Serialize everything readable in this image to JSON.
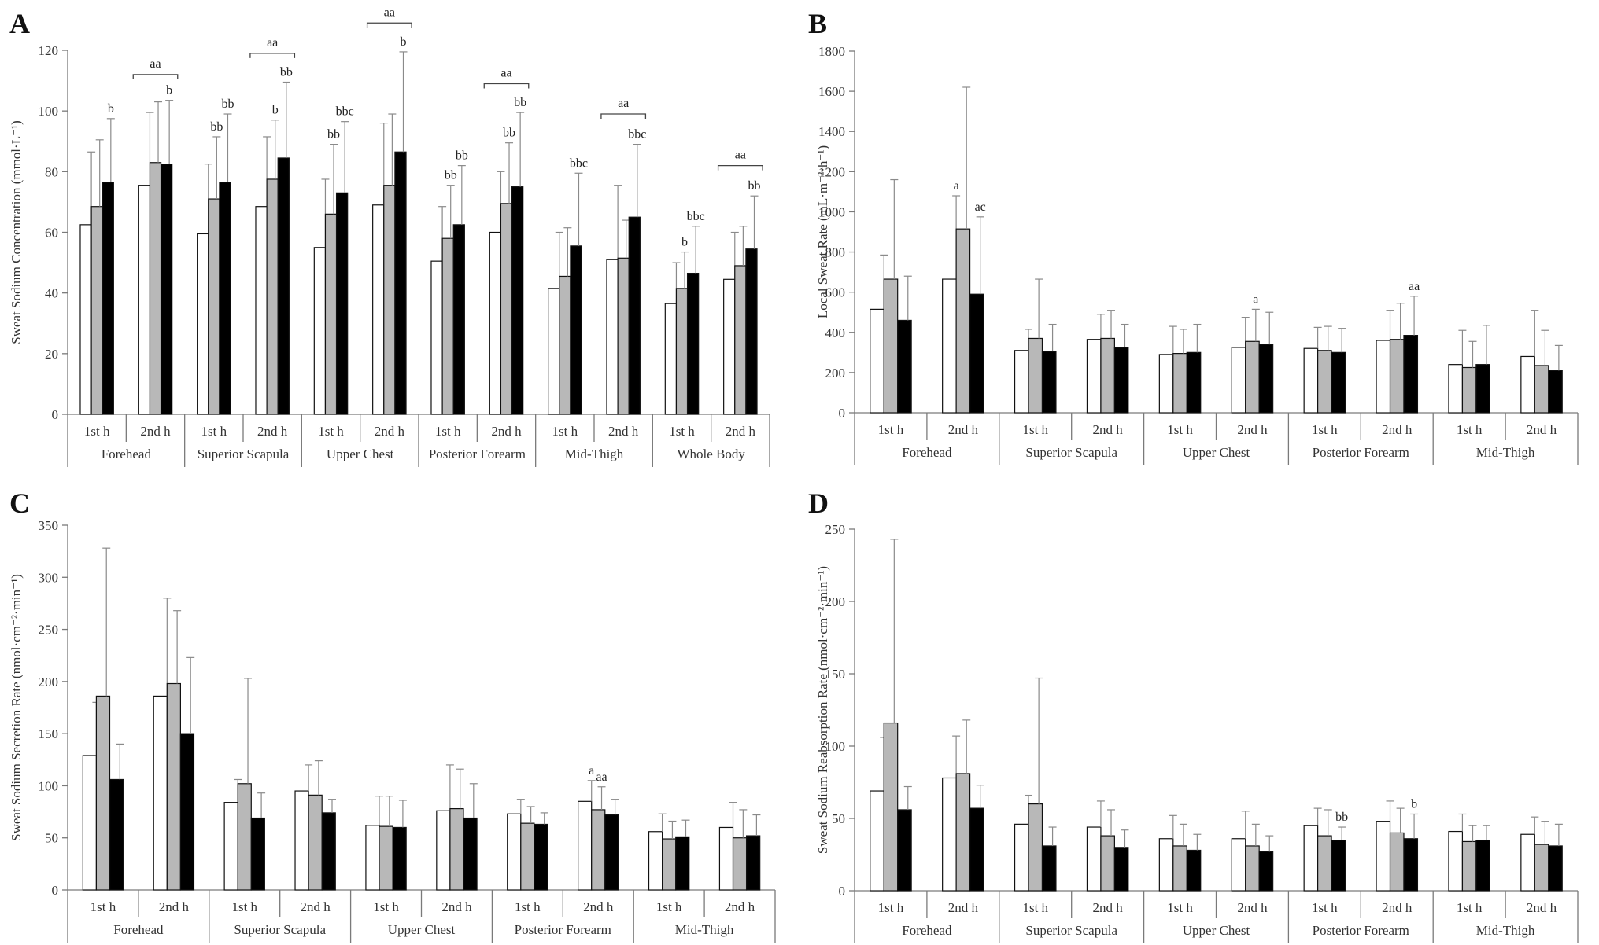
{
  "figure": {
    "colors": {
      "series1": "#ffffff",
      "series2": "#b8b8b8",
      "series3": "#000000",
      "edge": "#111111"
    }
  },
  "chart_data": [
    {
      "panel": "A",
      "type": "bar",
      "ylabel": "Sweat Sodium Concentration (mmol·L⁻¹)",
      "ylim": [
        0,
        120
      ],
      "yticks": [
        0,
        20,
        40,
        60,
        80,
        100,
        120
      ],
      "sites": [
        "Forehead",
        "Superior Scapula",
        "Upper Chest",
        "Posterior Forearm",
        "Mid-Thigh",
        "Whole Body"
      ],
      "hours": [
        "1st h",
        "2nd h"
      ],
      "groups": [
        {
          "site": "Forehead",
          "hour": "1st h",
          "values": [
            62.5,
            68.5,
            76.5
          ],
          "errors": [
            86.5,
            90.5,
            97.5
          ],
          "labels": [
            "",
            "",
            "b"
          ]
        },
        {
          "site": "Forehead",
          "hour": "2nd h",
          "values": [
            75.5,
            83,
            82.5
          ],
          "errors": [
            99.5,
            103,
            103.5
          ],
          "labels": [
            "",
            "",
            "b"
          ]
        },
        {
          "site": "Superior Scapula",
          "hour": "1st h",
          "values": [
            59.5,
            71,
            76.5
          ],
          "errors": [
            82.5,
            91.5,
            99
          ],
          "labels": [
            "",
            "bb",
            "bb"
          ]
        },
        {
          "site": "Superior Scapula",
          "hour": "2nd h",
          "values": [
            68.5,
            77.5,
            84.5
          ],
          "errors": [
            91.5,
            97,
            109.5
          ],
          "labels": [
            "",
            "b",
            "bb"
          ]
        },
        {
          "site": "Upper Chest",
          "hour": "1st h",
          "values": [
            55,
            66,
            73
          ],
          "errors": [
            77.5,
            89,
            96.5
          ],
          "labels": [
            "",
            "bb",
            "bbc"
          ]
        },
        {
          "site": "Upper Chest",
          "hour": "2nd h",
          "values": [
            69,
            75.5,
            86.5
          ],
          "errors": [
            96,
            99,
            119.5
          ],
          "labels": [
            "",
            "",
            "b"
          ]
        },
        {
          "site": "Posterior Forearm",
          "hour": "1st h",
          "values": [
            50.5,
            58,
            62.5
          ],
          "errors": [
            68.5,
            75.5,
            82
          ],
          "labels": [
            "",
            "bb",
            "bb"
          ]
        },
        {
          "site": "Posterior Forearm",
          "hour": "2nd h",
          "values": [
            60,
            69.5,
            75
          ],
          "errors": [
            80,
            89.5,
            99.5
          ],
          "labels": [
            "",
            "bb",
            "bb"
          ]
        },
        {
          "site": "Mid-Thigh",
          "hour": "1st h",
          "values": [
            41.5,
            45.5,
            55.5
          ],
          "errors": [
            60,
            61.5,
            79.5
          ],
          "labels": [
            "",
            "",
            "bbc"
          ]
        },
        {
          "site": "Mid-Thigh",
          "hour": "2nd h",
          "values": [
            51,
            51.5,
            65
          ],
          "errors": [
            75.5,
            64,
            89
          ],
          "labels": [
            "",
            "",
            "bbc"
          ]
        },
        {
          "site": "Whole Body",
          "hour": "1st h",
          "values": [
            36.5,
            41.5,
            46.5
          ],
          "errors": [
            50,
            53.5,
            62
          ],
          "labels": [
            "",
            "b",
            "bbc"
          ]
        },
        {
          "site": "Whole Body",
          "hour": "2nd h",
          "values": [
            44.5,
            49,
            54.5
          ],
          "errors": [
            60,
            62,
            72
          ],
          "labels": [
            "",
            "",
            "bb"
          ]
        }
      ],
      "brackets": [
        {
          "group": 1,
          "label": "aa",
          "level": 112
        },
        {
          "group": 3,
          "label": "aa",
          "level": 119
        },
        {
          "group": 5,
          "label": "aa",
          "level": 129
        },
        {
          "group": 7,
          "label": "aa",
          "level": 109
        },
        {
          "group": 9,
          "label": "aa",
          "level": 99
        },
        {
          "group": 11,
          "label": "aa",
          "level": 82
        }
      ]
    },
    {
      "panel": "B",
      "type": "bar",
      "ylabel": "Local Sweat Rate (mL·m⁻²·h⁻¹)",
      "ylim": [
        0,
        1800
      ],
      "yticks": [
        0,
        200,
        400,
        600,
        800,
        1000,
        1200,
        1400,
        1600,
        1800
      ],
      "sites": [
        "Forehead",
        "Superior Scapula",
        "Upper Chest",
        "Posterior Forearm",
        "Mid-Thigh"
      ],
      "hours": [
        "1st h",
        "2nd h"
      ],
      "groups": [
        {
          "site": "Forehead",
          "hour": "1st h",
          "values": [
            515,
            665,
            460
          ],
          "errors": [
            785,
            1160,
            680
          ],
          "labels": [
            "",
            "",
            ""
          ]
        },
        {
          "site": "Forehead",
          "hour": "2nd h",
          "values": [
            665,
            915,
            590
          ],
          "errors": [
            1080,
            1620,
            975
          ],
          "labels": [
            "a",
            "",
            "ac"
          ]
        },
        {
          "site": "Superior Scapula",
          "hour": "1st h",
          "values": [
            310,
            370,
            305
          ],
          "errors": [
            415,
            665,
            440
          ],
          "labels": [
            "",
            "",
            ""
          ]
        },
        {
          "site": "Superior Scapula",
          "hour": "2nd h",
          "values": [
            365,
            370,
            325
          ],
          "errors": [
            490,
            510,
            440
          ],
          "labels": [
            "",
            "",
            ""
          ]
        },
        {
          "site": "Upper Chest",
          "hour": "1st h",
          "values": [
            290,
            295,
            300
          ],
          "errors": [
            430,
            415,
            440
          ],
          "labels": [
            "",
            "",
            ""
          ]
        },
        {
          "site": "Upper Chest",
          "hour": "2nd h",
          "values": [
            325,
            355,
            340
          ],
          "errors": [
            475,
            515,
            500
          ],
          "labels": [
            "",
            "a",
            ""
          ]
        },
        {
          "site": "Posterior Forearm",
          "hour": "1st h",
          "values": [
            320,
            310,
            300
          ],
          "errors": [
            425,
            430,
            420
          ],
          "labels": [
            "",
            "",
            ""
          ]
        },
        {
          "site": "Posterior Forearm",
          "hour": "2nd h",
          "values": [
            360,
            365,
            385
          ],
          "errors": [
            510,
            545,
            580
          ],
          "labels": [
            "",
            "",
            "aa"
          ]
        },
        {
          "site": "Mid-Thigh",
          "hour": "1st h",
          "values": [
            240,
            225,
            240
          ],
          "errors": [
            410,
            355,
            435
          ],
          "labels": [
            "",
            "",
            ""
          ]
        },
        {
          "site": "Mid-Thigh",
          "hour": "2nd h",
          "values": [
            280,
            235,
            210
          ],
          "errors": [
            510,
            410,
            335
          ],
          "labels": [
            "",
            "",
            ""
          ]
        }
      ],
      "brackets": []
    },
    {
      "panel": "C",
      "type": "bar",
      "ylabel": "Sweat Sodium Secretion  Rate (nmol·cm⁻²·min⁻¹)",
      "ylim": [
        0,
        350
      ],
      "yticks": [
        0,
        50,
        100,
        150,
        200,
        250,
        300,
        350
      ],
      "sites": [
        "Forehead",
        "Superior Scapula",
        "Upper Chest",
        "Posterior Forearm",
        "Mid-Thigh"
      ],
      "hours": [
        "1st h",
        "2nd h"
      ],
      "groups": [
        {
          "site": "Forehead",
          "hour": "1st h",
          "values": [
            129,
            186,
            106
          ],
          "errors": [
            180,
            328,
            140
          ],
          "labels": [
            "",
            "",
            ""
          ]
        },
        {
          "site": "Forehead",
          "hour": "2nd h",
          "values": [
            186,
            198,
            150
          ],
          "errors": [
            280,
            268,
            223
          ],
          "labels": [
            "",
            "",
            ""
          ]
        },
        {
          "site": "Superior Scapula",
          "hour": "1st h",
          "values": [
            84,
            102,
            69
          ],
          "errors": [
            106,
            203,
            93
          ],
          "labels": [
            "",
            "",
            ""
          ]
        },
        {
          "site": "Superior Scapula",
          "hour": "2nd h",
          "values": [
            95,
            91,
            74
          ],
          "errors": [
            120,
            124,
            87
          ],
          "labels": [
            "",
            "",
            ""
          ]
        },
        {
          "site": "Upper Chest",
          "hour": "1st h",
          "values": [
            62,
            61,
            60
          ],
          "errors": [
            90,
            90,
            86
          ],
          "labels": [
            "",
            "",
            ""
          ]
        },
        {
          "site": "Upper Chest",
          "hour": "2nd h",
          "values": [
            76,
            78,
            69
          ],
          "errors": [
            120,
            116,
            102
          ],
          "labels": [
            "",
            "",
            ""
          ]
        },
        {
          "site": "Posterior Forearm",
          "hour": "1st h",
          "values": [
            73,
            64,
            63
          ],
          "errors": [
            87,
            80,
            74
          ],
          "labels": [
            "",
            "",
            ""
          ]
        },
        {
          "site": "Posterior Forearm",
          "hour": "2nd h",
          "values": [
            85,
            77,
            72
          ],
          "errors": [
            105,
            99,
            87
          ],
          "labels": [
            "a",
            "aa",
            ""
          ]
        },
        {
          "site": "Mid-Thigh",
          "hour": "1st h",
          "values": [
            56,
            49,
            51
          ],
          "errors": [
            73,
            66,
            67
          ],
          "labels": [
            "",
            "",
            ""
          ]
        },
        {
          "site": "Mid-Thigh",
          "hour": "2nd h",
          "values": [
            60,
            50,
            52
          ],
          "errors": [
            84,
            77,
            72
          ],
          "labels": [
            "",
            "",
            ""
          ]
        }
      ],
      "brackets": []
    },
    {
      "panel": "D",
      "type": "bar",
      "ylabel": "Sweat Sodium Reabsorption  Rate (nmol·cm⁻²·min⁻¹)",
      "ylim": [
        0,
        250
      ],
      "yticks": [
        0,
        50,
        100,
        150,
        200,
        250
      ],
      "sites": [
        "Forehead",
        "Superior Scapula",
        "Upper Chest",
        "Posterior Forearm",
        "Mid-Thigh"
      ],
      "hours": [
        "1st h",
        "2nd h"
      ],
      "groups": [
        {
          "site": "Forehead",
          "hour": "1st h",
          "values": [
            69,
            116,
            56
          ],
          "errors": [
            106,
            243,
            72
          ],
          "labels": [
            "",
            "",
            ""
          ]
        },
        {
          "site": "Forehead",
          "hour": "2nd h",
          "values": [
            78,
            81,
            57
          ],
          "errors": [
            107,
            118,
            73
          ],
          "labels": [
            "",
            "",
            ""
          ]
        },
        {
          "site": "Superior Scapula",
          "hour": "1st h",
          "values": [
            46,
            60,
            31
          ],
          "errors": [
            66,
            147,
            44
          ],
          "labels": [
            "",
            "",
            ""
          ]
        },
        {
          "site": "Superior Scapula",
          "hour": "2nd h",
          "values": [
            44,
            38,
            30
          ],
          "errors": [
            62,
            56,
            42
          ],
          "labels": [
            "",
            "",
            ""
          ]
        },
        {
          "site": "Upper Chest",
          "hour": "1st h",
          "values": [
            36,
            31,
            28
          ],
          "errors": [
            52,
            46,
            39
          ],
          "labels": [
            "",
            "",
            ""
          ]
        },
        {
          "site": "Upper Chest",
          "hour": "2nd h",
          "values": [
            36,
            31,
            27
          ],
          "errors": [
            55,
            46,
            38
          ],
          "labels": [
            "",
            "",
            ""
          ]
        },
        {
          "site": "Posterior Forearm",
          "hour": "1st h",
          "values": [
            45,
            38,
            35
          ],
          "errors": [
            57,
            56,
            44
          ],
          "labels": [
            "",
            "",
            "bb"
          ]
        },
        {
          "site": "Posterior Forearm",
          "hour": "2nd h",
          "values": [
            48,
            40,
            36
          ],
          "errors": [
            62,
            57,
            53
          ],
          "labels": [
            "",
            "",
            "b"
          ]
        },
        {
          "site": "Mid-Thigh",
          "hour": "1st h",
          "values": [
            41,
            34,
            35
          ],
          "errors": [
            53,
            45,
            45
          ],
          "labels": [
            "",
            "",
            ""
          ]
        },
        {
          "site": "Mid-Thigh",
          "hour": "2nd h",
          "values": [
            39,
            32,
            31
          ],
          "errors": [
            51,
            48,
            46
          ],
          "labels": [
            "",
            "",
            ""
          ]
        }
      ],
      "brackets": []
    }
  ]
}
